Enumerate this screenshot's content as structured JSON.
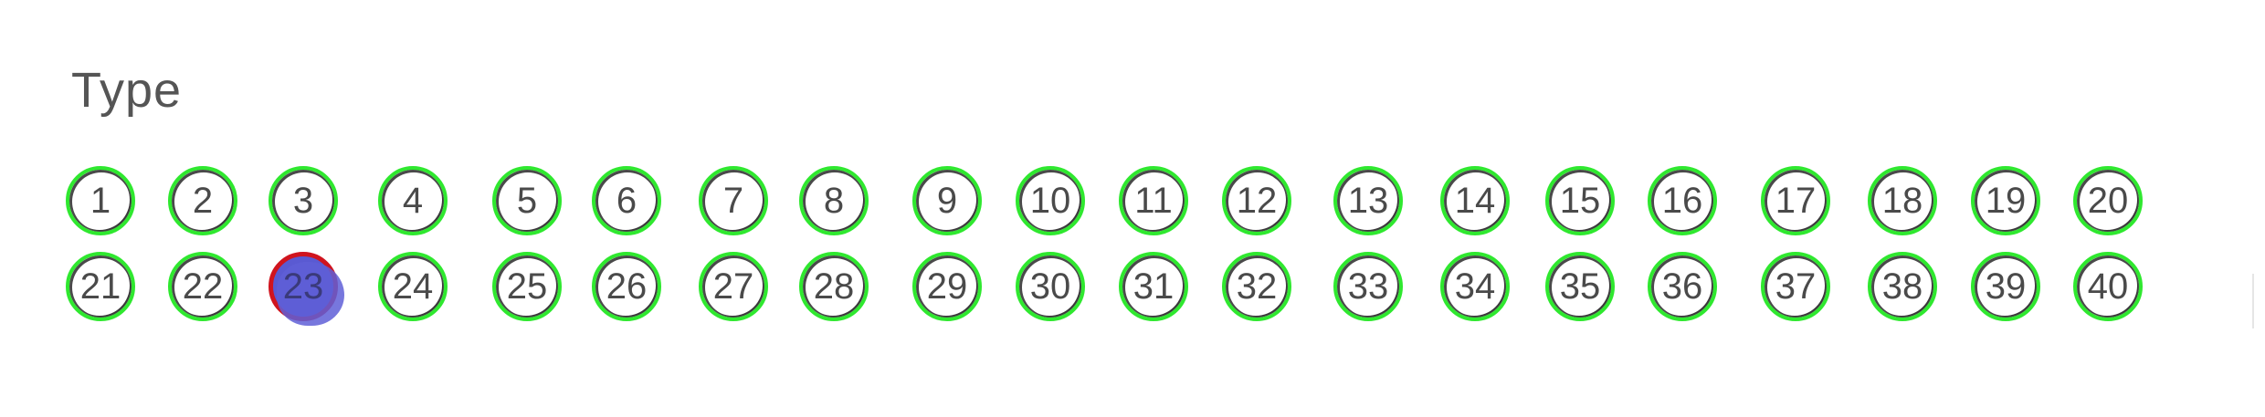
{
  "form": {
    "title": "Type",
    "options": [
      "1",
      "2",
      "3",
      "4",
      "5",
      "6",
      "7",
      "8",
      "9",
      "10",
      "11",
      "12",
      "13",
      "14",
      "15",
      "16",
      "17",
      "18",
      "19",
      "20",
      "21",
      "22",
      "23",
      "24",
      "25",
      "26",
      "27",
      "28",
      "29",
      "30",
      "31",
      "32",
      "33",
      "34",
      "35",
      "36",
      "37",
      "38",
      "39",
      "40"
    ],
    "selected": "23",
    "colors": {
      "detected_outline": "#2fe82f",
      "selected_outline": "#d0141e",
      "selected_fill": "#5a5ad2",
      "text": "#4a4a4a"
    }
  }
}
